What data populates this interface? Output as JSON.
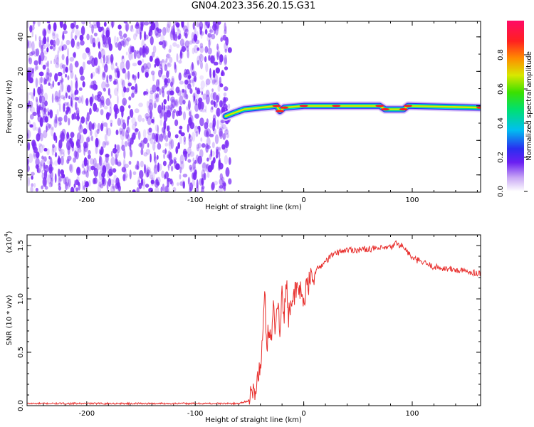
{
  "title": "GN04.2023.356.20.15.G31",
  "colorbar": {
    "label": "Normalized spectral amplitude",
    "ticks": [
      "0.0",
      "0.2",
      "0.4",
      "0.6",
      "0.8"
    ]
  },
  "chart_data": [
    {
      "type": "heatmap",
      "xlabel": "Height of straight line (km)",
      "ylabel": "Frequency (Hz)",
      "xlim": [
        -255,
        163
      ],
      "ylim": [
        -50,
        49
      ],
      "xticks": [
        "-200",
        "-100",
        "0",
        "100"
      ],
      "yticks": [
        "-40",
        "-20",
        "0",
        "20",
        "40"
      ],
      "noise_region": {
        "x_range": [
          -255,
          -68
        ],
        "color": "#7b2cf5"
      },
      "signal_track": [
        {
          "x": -72,
          "y": -6
        },
        {
          "x": -64,
          "y": -4
        },
        {
          "x": -55,
          "y": -2
        },
        {
          "x": -40,
          "y": -1
        },
        {
          "x": -25,
          "y": 0
        },
        {
          "x": -22,
          "y": -3
        },
        {
          "x": -18,
          "y": -1
        },
        {
          "x": 0,
          "y": 0
        },
        {
          "x": 30,
          "y": 0
        },
        {
          "x": 70,
          "y": 0
        },
        {
          "x": 75,
          "y": -2
        },
        {
          "x": 92,
          "y": -2
        },
        {
          "x": 96,
          "y": 0
        },
        {
          "x": 163,
          "y": -1
        }
      ]
    },
    {
      "type": "line",
      "xlabel": "Height of straight line (km)",
      "ylabel": "SNR (10 * v/v)",
      "scale_note": "(x10",
      "scale_exp": "4",
      "xlim": [
        -255,
        163
      ],
      "ylim": [
        0,
        1.6
      ],
      "xticks": [
        "-200",
        "-100",
        "0",
        "100"
      ],
      "yticks": [
        "0.0",
        "0.5",
        "1.0",
        "1.5"
      ],
      "color": "#e8302e",
      "series": [
        {
          "x": [
            -255,
            -200,
            -100,
            -60,
            -50,
            -45,
            -40,
            -38,
            -36,
            -34,
            -32,
            -30,
            -28,
            -26,
            -24,
            -22,
            -20,
            -18,
            -16,
            -14,
            -12,
            -10,
            -8,
            -5,
            0,
            5,
            10,
            15,
            20,
            25,
            30,
            35,
            40,
            50,
            60,
            70,
            80,
            85,
            90,
            95,
            100,
            110,
            120,
            140,
            163
          ],
          "y": [
            0.02,
            0.02,
            0.02,
            0.02,
            0.05,
            0.15,
            0.35,
            0.6,
            1.05,
            0.55,
            0.75,
            0.65,
            0.9,
            0.7,
            1.0,
            0.75,
            1.05,
            0.8,
            1.2,
            0.85,
            1.0,
            0.95,
            1.05,
            1.1,
            1.0,
            1.15,
            1.25,
            1.3,
            1.35,
            1.4,
            1.43,
            1.45,
            1.46,
            1.46,
            1.47,
            1.47,
            1.48,
            1.52,
            1.5,
            1.45,
            1.38,
            1.34,
            1.3,
            1.27,
            1.24
          ]
        }
      ]
    }
  ]
}
